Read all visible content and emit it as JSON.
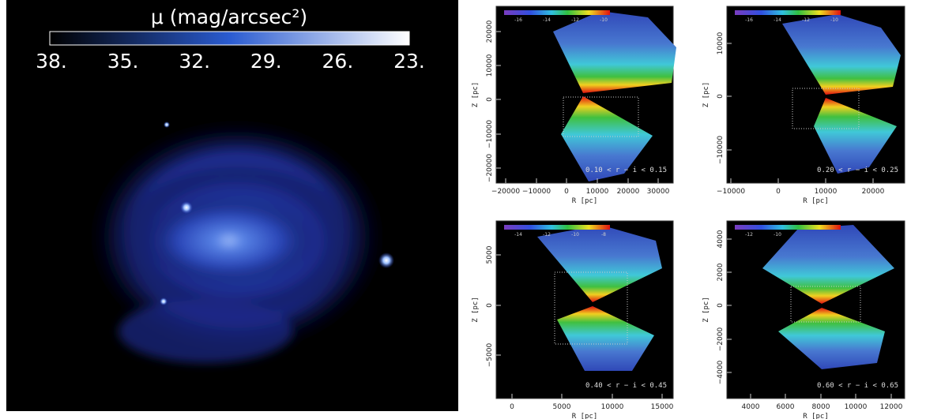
{
  "left_image": {
    "colorbar_title": "μ (mag/arcsec²)",
    "colorbar_ticks": [
      "38.",
      "35.",
      "32.",
      "29.",
      "26.",
      "23."
    ]
  },
  "panels": [
    {
      "x_label": "R [pc]",
      "y_label": "Z [pc]",
      "annotation": "0.10 < r − i < 0.15",
      "x_ticks": [
        "−20000",
        "−10000",
        "0",
        "10000",
        "20000",
        "30000"
      ],
      "y_ticks": [
        "20000",
        "10000",
        "0",
        "−10000",
        "−20000"
      ],
      "colorbar_ticks": [
        "-16",
        "-14",
        "-12",
        "-10"
      ]
    },
    {
      "x_label": "R [pc]",
      "y_label": "Z [pc]",
      "annotation": "0.20 < r − i < 0.25",
      "x_ticks": [
        "−10000",
        "0",
        "10000",
        "20000"
      ],
      "y_ticks": [
        "10000",
        "0",
        "−10000"
      ],
      "colorbar_ticks": [
        "-16",
        "-14",
        "-12",
        "-10"
      ]
    },
    {
      "x_label": "R [pc]",
      "y_label": "Z [pc]",
      "annotation": "0.40 < r − i < 0.45",
      "x_ticks": [
        "0",
        "5000",
        "10000",
        "15000"
      ],
      "y_ticks": [
        "5000",
        "0",
        "−5000"
      ],
      "colorbar_ticks": [
        "-14",
        "-12",
        "-10",
        "-8"
      ]
    },
    {
      "x_label": "R [pc]",
      "y_label": "Z [pc]",
      "annotation": "0.60 < r − i < 0.65",
      "x_ticks": [
        "4000",
        "6000",
        "8000",
        "10000",
        "12000"
      ],
      "y_ticks": [
        "4000",
        "2000",
        "0",
        "−2000",
        "−4000"
      ],
      "colorbar_ticks": [
        "-12",
        "-10"
      ]
    }
  ]
}
